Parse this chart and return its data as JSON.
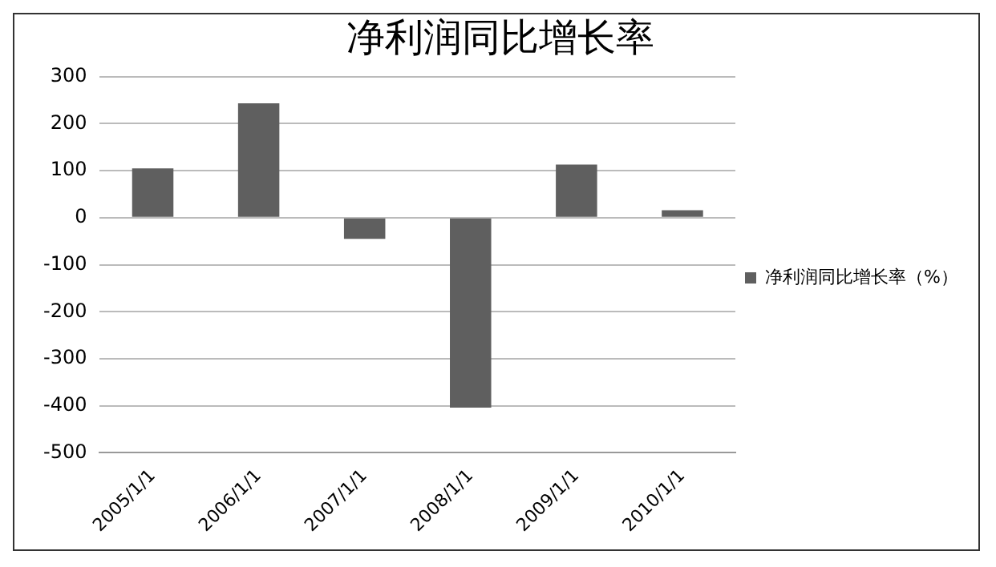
{
  "chart_data": {
    "type": "bar",
    "title": "净利润同比增长率",
    "categories": [
      "2005/1/1",
      "2006/1/1",
      "2007/1/1",
      "2008/1/1",
      "2009/1/1",
      "2010/1/1"
    ],
    "series": [
      {
        "name": "净利润同比增长率（%）",
        "color": "#5f5f5f",
        "values": [
          105,
          243,
          -45,
          -404,
          113,
          16
        ]
      }
    ],
    "ylim": [
      -500,
      300
    ],
    "yticks": [
      -500,
      -400,
      -300,
      -200,
      -100,
      0,
      100,
      200,
      300
    ],
    "grid": "y",
    "legend": "right"
  }
}
